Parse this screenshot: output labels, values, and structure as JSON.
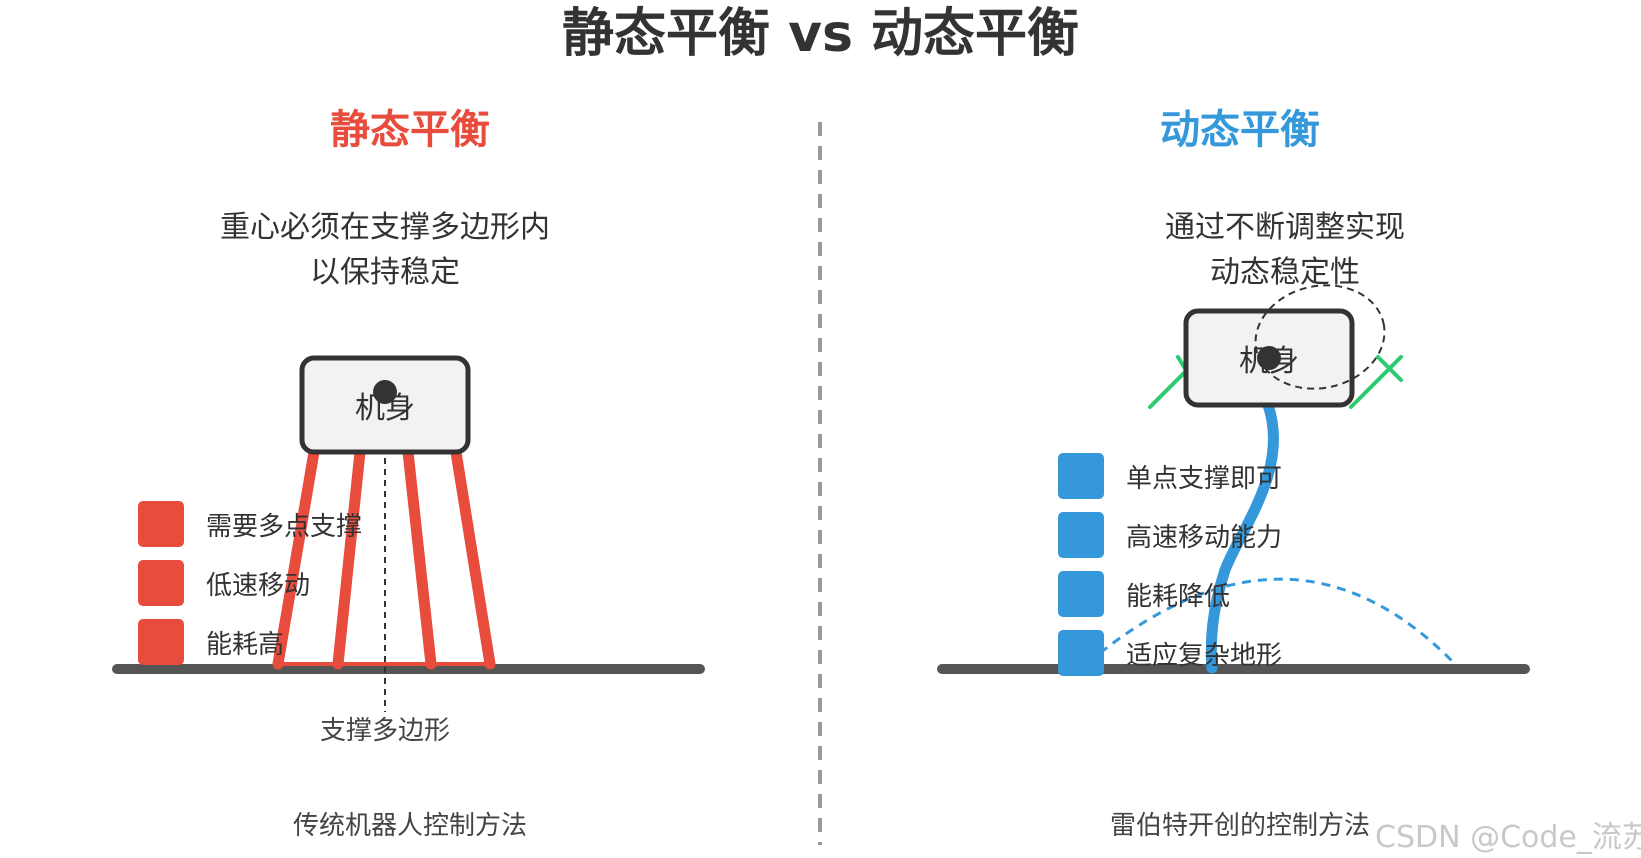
{
  "title": "静态平衡 vs 动态平衡",
  "colors": {
    "static_accent": "#e74c3c",
    "dynamic_accent": "#3498db",
    "green_marks": "#2ecc71",
    "ground": "#555555",
    "divider": "#999999"
  },
  "left": {
    "heading": "静态平衡",
    "desc_line1": "重心必须在支撑多边形内",
    "desc_line2": "以保持稳定",
    "body_label": "机身",
    "support_label": "支撑多边形",
    "legend": [
      "需要多点支撑",
      "低速移动",
      "能耗高"
    ],
    "caption": "传统机器人控制方法"
  },
  "right": {
    "heading": "动态平衡",
    "desc_line1": "通过不断调整实现",
    "desc_line2": "动态稳定性",
    "body_label": "机身",
    "legend": [
      "单点支撑即可",
      "高速移动能力",
      "能耗降低",
      "适应复杂地形"
    ],
    "caption": "雷伯特开创的控制方法"
  },
  "watermark": "CSDN @Code_流苏"
}
